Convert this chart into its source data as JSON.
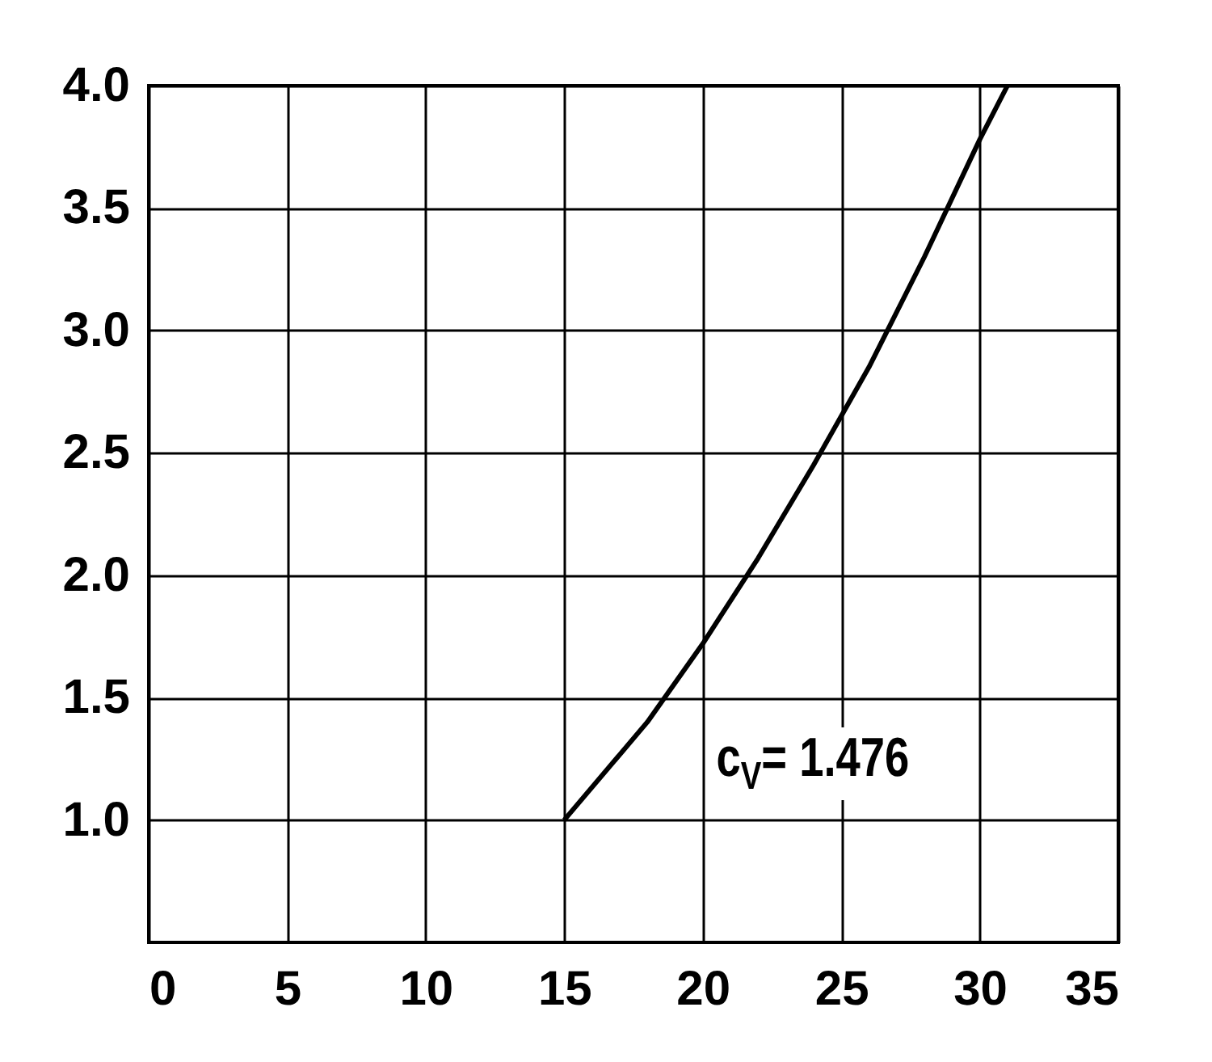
{
  "chart_data": {
    "type": "line",
    "x": [
      15,
      18,
      20,
      22,
      24,
      26,
      28,
      30,
      31
    ],
    "series": [
      {
        "color": "#000000",
        "values": [
          1.0,
          1.4,
          1.72,
          2.07,
          2.45,
          2.85,
          3.3,
          3.78,
          4.0
        ]
      }
    ],
    "xlim": [
      0,
      35
    ],
    "xticks": [
      0,
      5,
      10,
      15,
      20,
      25,
      30,
      35
    ],
    "ylim": [
      0.5,
      4.0
    ],
    "yticks": [
      {
        "value": 1,
        "label": "1.0"
      },
      1.5,
      {
        "value": 2,
        "label": "2.0"
      },
      2.5,
      {
        "value": 3,
        "label": "3.0"
      },
      3.5,
      {
        "value": 4,
        "label": "4.0"
      }
    ],
    "grid": true,
    "annotations": [
      "c$_{V}$= 1.476"
    ]
  }
}
